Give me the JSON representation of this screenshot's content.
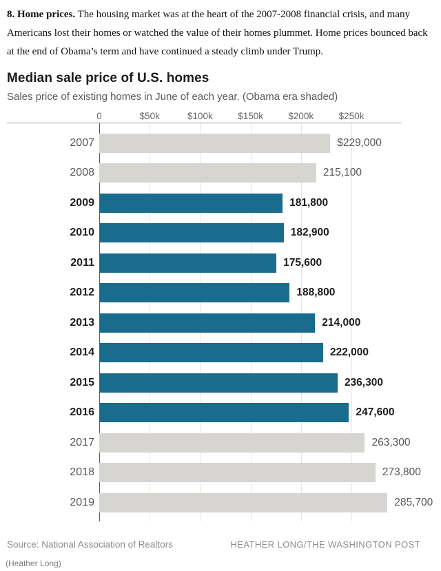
{
  "article": {
    "lead": "8. Home prices.",
    "body": " The housing market was at the heart of the 2007-2008 financial crisis, and many Americans lost their homes or watched the value of their homes plummet. Home prices bounced back at the end of Obama’s term and have continued a steady climb under Trump."
  },
  "chart_data": {
    "type": "bar",
    "orientation": "horizontal",
    "title": "Median sale price of U.S. homes",
    "subtitle": "Sales price of existing homes in June of each year. (Obama era shaded)",
    "xlabel": "",
    "ylabel": "",
    "xlim": [
      0,
      292000
    ],
    "grid": true,
    "x_axis": {
      "ticks": [
        "0",
        "$50k",
        "$100k",
        "$150k",
        "$200k",
        "$250k"
      ],
      "tick_values": [
        0,
        50000,
        100000,
        150000,
        200000,
        250000
      ]
    },
    "categories": [
      "2007",
      "2008",
      "2009",
      "2010",
      "2011",
      "2012",
      "2013",
      "2014",
      "2015",
      "2016",
      "2017",
      "2018",
      "2019"
    ],
    "values": [
      229000,
      215100,
      181800,
      182900,
      175600,
      188800,
      214000,
      222000,
      236300,
      247600,
      263300,
      273800,
      285700
    ],
    "value_labels": [
      "$229,000",
      "215,100",
      "181,800",
      "182,900",
      "175,600",
      "188,800",
      "214,000",
      "222,000",
      "236,300",
      "247,600",
      "263,300",
      "273,800",
      "285,700"
    ],
    "obama_era": [
      false,
      false,
      true,
      true,
      true,
      true,
      true,
      true,
      true,
      true,
      false,
      false,
      false
    ],
    "colors": {
      "obama_bar": "#1a6c8f",
      "other_bar": "#d6d5d1",
      "grid": "#e6e6e3",
      "baseline": "#5d5d5d",
      "axis_rule": "#9b9b9b"
    }
  },
  "footer": {
    "source": "Source: National Association of Realtors",
    "credit": "HEATHER LONG/THE WASHINGTON POST",
    "caption": "(Heather Long)"
  }
}
